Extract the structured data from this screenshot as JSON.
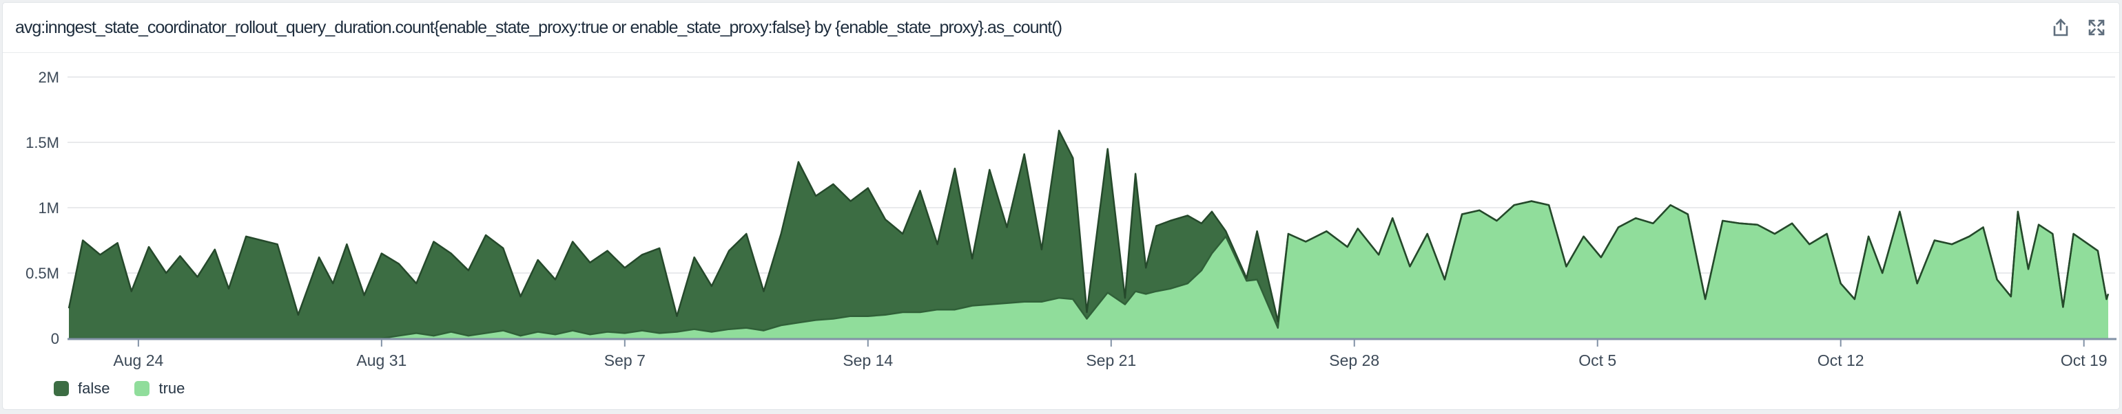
{
  "header": {
    "title": "avg:inngest_state_coordinator_rollout_query_duration.count{enable_state_proxy:true or enable_state_proxy:false} by {enable_state_proxy}.as_count()"
  },
  "legend": {
    "items": [
      {
        "label": "false",
        "color": "#3c6d43"
      },
      {
        "label": "true",
        "color": "#90dd9b"
      }
    ]
  },
  "colors": {
    "title": "#1e2d3d",
    "label": "#3d4a58",
    "grid": "#e9eaec",
    "axis": "#8292a6",
    "icon": "#5f6e7d",
    "border": "#e0e4e8",
    "page_bg": "#eef0f2",
    "false_fill": "#3c6d43",
    "false_stroke": "#25492b",
    "true_fill": "#90dd9b",
    "true_stroke": "#306038"
  },
  "chart_data": {
    "type": "area",
    "stacked": true,
    "title": "avg:inngest_state_coordinator_rollout_query_duration.count by {enable_state_proxy}",
    "xlabel": "",
    "ylabel": "",
    "unit": "count (M = millions)",
    "x_encoding": "days since Aug 22 00:00",
    "x_domain": [
      0,
      58.7
    ],
    "ylim": [
      0,
      2
    ],
    "grid": true,
    "legend_position": "bottom-left",
    "x_ticks": [
      {
        "d": 2,
        "label": "Aug 24"
      },
      {
        "d": 9,
        "label": "Aug 31"
      },
      {
        "d": 16,
        "label": "Sep 7"
      },
      {
        "d": 23,
        "label": "Sep 14"
      },
      {
        "d": 30,
        "label": "Sep 21"
      },
      {
        "d": 37,
        "label": "Sep 28"
      },
      {
        "d": 44,
        "label": "Oct 5"
      },
      {
        "d": 51,
        "label": "Oct 12"
      },
      {
        "d": 58,
        "label": "Oct 19"
      }
    ],
    "y_ticks": [
      {
        "v": 0,
        "label": "0"
      },
      {
        "v": 0.5,
        "label": "0.5M"
      },
      {
        "v": 1,
        "label": "1M"
      },
      {
        "v": 1.5,
        "label": "1.5M"
      },
      {
        "v": 2,
        "label": "2M"
      }
    ],
    "series": [
      {
        "name": "true",
        "fill": "#90dd9b",
        "stroke": "#306038"
      },
      {
        "name": "false",
        "fill": "#3c6d43",
        "stroke": "#25492b"
      }
    ],
    "points_format": [
      "days_since_aug22",
      "false_millions",
      "true_millions"
    ],
    "points": [
      [
        0,
        0.23,
        0
      ],
      [
        0.4,
        0.75,
        0
      ],
      [
        0.9,
        0.64,
        0
      ],
      [
        1.4,
        0.73,
        0
      ],
      [
        1.8,
        0.36,
        0
      ],
      [
        2.3,
        0.7,
        0
      ],
      [
        2.8,
        0.5,
        0
      ],
      [
        3.2,
        0.63,
        0
      ],
      [
        3.7,
        0.47,
        0
      ],
      [
        4.2,
        0.68,
        0
      ],
      [
        4.6,
        0.38,
        0
      ],
      [
        5.1,
        0.78,
        0
      ],
      [
        6.0,
        0.72,
        0
      ],
      [
        6.6,
        0.18,
        0
      ],
      [
        7.2,
        0.62,
        0
      ],
      [
        7.6,
        0.42,
        0
      ],
      [
        8.0,
        0.72,
        0
      ],
      [
        8.5,
        0.33,
        0
      ],
      [
        9.0,
        0.65,
        0
      ],
      [
        9.5,
        0.55,
        0.02
      ],
      [
        10.0,
        0.38,
        0.04
      ],
      [
        10.5,
        0.72,
        0.02
      ],
      [
        11.0,
        0.6,
        0.05
      ],
      [
        11.5,
        0.5,
        0.02
      ],
      [
        12.0,
        0.75,
        0.04
      ],
      [
        12.5,
        0.63,
        0.06
      ],
      [
        13.0,
        0.3,
        0.02
      ],
      [
        13.5,
        0.55,
        0.05
      ],
      [
        14.0,
        0.42,
        0.03
      ],
      [
        14.5,
        0.68,
        0.06
      ],
      [
        15.0,
        0.55,
        0.03
      ],
      [
        15.5,
        0.62,
        0.05
      ],
      [
        16.0,
        0.5,
        0.04
      ],
      [
        16.5,
        0.58,
        0.06
      ],
      [
        17.0,
        0.65,
        0.04
      ],
      [
        17.5,
        0.12,
        0.05
      ],
      [
        18.0,
        0.55,
        0.07
      ],
      [
        18.5,
        0.35,
        0.05
      ],
      [
        19.0,
        0.6,
        0.07
      ],
      [
        19.5,
        0.72,
        0.08
      ],
      [
        20.0,
        0.3,
        0.06
      ],
      [
        20.5,
        0.7,
        0.1
      ],
      [
        21.0,
        1.23,
        0.12
      ],
      [
        21.5,
        0.95,
        0.14
      ],
      [
        22.0,
        1.03,
        0.15
      ],
      [
        22.5,
        0.88,
        0.17
      ],
      [
        23.0,
        0.98,
        0.17
      ],
      [
        23.5,
        0.73,
        0.18
      ],
      [
        24.0,
        0.6,
        0.2
      ],
      [
        24.5,
        0.93,
        0.2
      ],
      [
        25.0,
        0.5,
        0.22
      ],
      [
        25.5,
        1.08,
        0.22
      ],
      [
        26.0,
        0.36,
        0.25
      ],
      [
        26.5,
        1.03,
        0.26
      ],
      [
        27.0,
        0.58,
        0.27
      ],
      [
        27.5,
        1.13,
        0.28
      ],
      [
        28.0,
        0.4,
        0.28
      ],
      [
        28.5,
        1.28,
        0.31
      ],
      [
        28.9,
        1.08,
        0.3
      ],
      [
        29.3,
        0.05,
        0.15
      ],
      [
        29.9,
        1.1,
        0.35
      ],
      [
        30.4,
        0.05,
        0.26
      ],
      [
        30.7,
        0.9,
        0.36
      ],
      [
        31.0,
        0.2,
        0.34
      ],
      [
        31.3,
        0.5,
        0.36
      ],
      [
        31.7,
        0.52,
        0.38
      ],
      [
        32.2,
        0.52,
        0.42
      ],
      [
        32.6,
        0.36,
        0.52
      ],
      [
        32.9,
        0.32,
        0.65
      ],
      [
        33.3,
        0.04,
        0.78
      ],
      [
        33.9,
        0.02,
        0.44
      ],
      [
        34.2,
        0.37,
        0.45
      ],
      [
        34.8,
        0.05,
        0.08
      ],
      [
        35.1,
        0,
        0.8
      ],
      [
        35.6,
        0,
        0.74
      ],
      [
        36.2,
        0,
        0.82
      ],
      [
        36.8,
        0,
        0.7
      ],
      [
        37.1,
        0,
        0.84
      ],
      [
        37.7,
        0,
        0.64
      ],
      [
        38.1,
        0,
        0.92
      ],
      [
        38.6,
        0,
        0.55
      ],
      [
        39.1,
        0,
        0.8
      ],
      [
        39.6,
        0,
        0.45
      ],
      [
        40.1,
        0,
        0.95
      ],
      [
        40.6,
        0,
        0.98
      ],
      [
        41.1,
        0,
        0.9
      ],
      [
        41.6,
        0,
        1.02
      ],
      [
        42.1,
        0,
        1.05
      ],
      [
        42.6,
        0,
        1.02
      ],
      [
        43.1,
        0,
        0.55
      ],
      [
        43.6,
        0,
        0.78
      ],
      [
        44.1,
        0,
        0.62
      ],
      [
        44.6,
        0,
        0.85
      ],
      [
        45.1,
        0,
        0.92
      ],
      [
        45.6,
        0,
        0.88
      ],
      [
        46.1,
        0,
        1.02
      ],
      [
        46.6,
        0,
        0.95
      ],
      [
        47.1,
        0,
        0.3
      ],
      [
        47.6,
        0,
        0.9
      ],
      [
        48.1,
        0,
        0.88
      ],
      [
        48.6,
        0,
        0.87
      ],
      [
        49.1,
        0,
        0.8
      ],
      [
        49.6,
        0,
        0.88
      ],
      [
        50.1,
        0,
        0.72
      ],
      [
        50.6,
        0,
        0.8
      ],
      [
        51.0,
        0,
        0.42
      ],
      [
        51.4,
        0,
        0.3
      ],
      [
        51.8,
        0,
        0.78
      ],
      [
        52.2,
        0,
        0.5
      ],
      [
        52.7,
        0,
        0.97
      ],
      [
        53.2,
        0,
        0.42
      ],
      [
        53.7,
        0,
        0.75
      ],
      [
        54.2,
        0,
        0.72
      ],
      [
        54.7,
        0,
        0.78
      ],
      [
        55.1,
        0,
        0.85
      ],
      [
        55.5,
        0,
        0.45
      ],
      [
        55.9,
        0,
        0.32
      ],
      [
        56.1,
        0,
        0.97
      ],
      [
        56.4,
        0,
        0.53
      ],
      [
        56.7,
        0,
        0.87
      ],
      [
        57.1,
        0,
        0.8
      ],
      [
        57.4,
        0,
        0.24
      ],
      [
        57.7,
        0,
        0.8
      ],
      [
        58.4,
        0,
        0.67
      ],
      [
        58.65,
        0,
        0.3
      ],
      [
        58.7,
        0,
        0.34
      ]
    ]
  }
}
